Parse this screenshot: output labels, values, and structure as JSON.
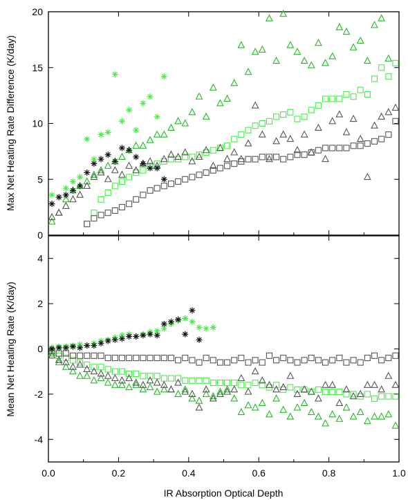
{
  "figure": {
    "xlabel": "IR Absorption Optical Depth",
    "top_ylabel": "Max Net Heating Rate Difference (K/day)",
    "bottom_ylabel": "Mean Net Heating Rate (K/day)"
  },
  "colors": {
    "green": "#22bb22",
    "light_green": "#44ee44",
    "gray": "#555555",
    "dark": "#111111"
  },
  "chart_data": [
    {
      "type": "scatter",
      "panel": "top",
      "xlabel": "IR Absorption Optical Depth",
      "ylabel": "Max Net Heating Rate Difference (K/day)",
      "xlim": [
        0,
        1
      ],
      "ylim": [
        0,
        20
      ],
      "xticks": [
        "0.0",
        "0.2",
        "0.4",
        "0.6",
        "0.8",
        "1.0"
      ],
      "yticks": [
        "0",
        "5",
        "10",
        "15",
        "20"
      ],
      "series": [
        {
          "marker": "triangle",
          "color": "#22bb22",
          "x": [
            0.01,
            0.03,
            0.05,
            0.07,
            0.09,
            0.11,
            0.13,
            0.15,
            0.17,
            0.19,
            0.21,
            0.23,
            0.25,
            0.27,
            0.29,
            0.31,
            0.33,
            0.35,
            0.37,
            0.39,
            0.41,
            0.43,
            0.45,
            0.47,
            0.49,
            0.51,
            0.53,
            0.55,
            0.57,
            0.59,
            0.61,
            0.63,
            0.65,
            0.67,
            0.69,
            0.71,
            0.73,
            0.75,
            0.77,
            0.79,
            0.81,
            0.83,
            0.85,
            0.87,
            0.89,
            0.91,
            0.93,
            0.95,
            0.97
          ],
          "y": [
            1.2,
            2.0,
            3.2,
            4.0,
            4.4,
            4.8,
            5.4,
            5.8,
            6.2,
            6.6,
            7.0,
            7.6,
            8.0,
            8.0,
            8.5,
            9.0,
            9.0,
            9.6,
            10.2,
            10.0,
            11.0,
            12.4,
            10.6,
            13.2,
            11.8,
            12.2,
            13.6,
            17.0,
            14.6,
            16.4,
            16.6,
            19.4,
            15.6,
            19.8,
            17.0,
            16.4,
            15.6,
            15.2,
            17.2,
            15.4,
            16.0,
            18.6,
            18.2,
            16.8,
            17.4,
            15.6,
            18.8,
            19.4,
            15.8
          ]
        },
        {
          "marker": "square",
          "color": "#44ee44",
          "x": [
            0.11,
            0.13,
            0.15,
            0.17,
            0.19,
            0.21,
            0.23,
            0.25,
            0.27,
            0.29,
            0.31,
            0.33,
            0.35,
            0.37,
            0.39,
            0.41,
            0.43,
            0.45,
            0.47,
            0.49,
            0.51,
            0.53,
            0.55,
            0.57,
            0.59,
            0.61,
            0.63,
            0.65,
            0.67,
            0.69,
            0.71,
            0.73,
            0.75,
            0.77,
            0.79,
            0.81,
            0.83,
            0.85,
            0.87,
            0.89,
            0.91,
            0.93,
            0.95,
            0.97,
            0.99
          ],
          "y": [
            1.0,
            2.0,
            3.2,
            3.8,
            4.4,
            4.8,
            5.2,
            5.6,
            5.8,
            6.2,
            6.4,
            6.6,
            6.8,
            6.8,
            7.0,
            7.0,
            7.2,
            7.4,
            7.6,
            7.8,
            8.0,
            8.6,
            9.0,
            9.4,
            9.8,
            10.0,
            10.2,
            10.6,
            10.8,
            11.0,
            10.4,
            10.6,
            11.2,
            11.6,
            12.2,
            12.2,
            12.2,
            12.6,
            12.4,
            13.0,
            12.6,
            14.0,
            15.0,
            14.2,
            15.4
          ]
        },
        {
          "marker": "triangle",
          "color": "#555555",
          "x": [
            0.01,
            0.03,
            0.05,
            0.07,
            0.09,
            0.11,
            0.13,
            0.15,
            0.17,
            0.19,
            0.21,
            0.23,
            0.25,
            0.27,
            0.29,
            0.31,
            0.33,
            0.35,
            0.37,
            0.39,
            0.41,
            0.43,
            0.45,
            0.47,
            0.49,
            0.51,
            0.53,
            0.55,
            0.57,
            0.59,
            0.61,
            0.63,
            0.65,
            0.67,
            0.69,
            0.71,
            0.73,
            0.75,
            0.77,
            0.79,
            0.81,
            0.83,
            0.85,
            0.87,
            0.89,
            0.91,
            0.93,
            0.95,
            0.97,
            0.99
          ],
          "y": [
            1.6,
            2.0,
            2.6,
            3.2,
            3.6,
            4.4,
            5.2,
            5.6,
            5.0,
            5.8,
            5.4,
            6.2,
            5.8,
            6.4,
            6.6,
            6.2,
            6.8,
            7.2,
            7.0,
            7.4,
            6.6,
            7.0,
            7.6,
            6.2,
            7.8,
            6.8,
            7.4,
            6.8,
            8.2,
            11.6,
            9.0,
            6.8,
            8.4,
            9.0,
            8.6,
            7.6,
            9.0,
            7.4,
            9.6,
            6.8,
            10.2,
            10.8,
            9.2,
            10.4,
            8.6,
            5.2,
            9.8,
            10.6,
            11.0,
            11.4
          ]
        },
        {
          "marker": "square",
          "color": "#555555",
          "x": [
            0.11,
            0.13,
            0.15,
            0.17,
            0.19,
            0.21,
            0.23,
            0.25,
            0.27,
            0.29,
            0.31,
            0.33,
            0.35,
            0.37,
            0.39,
            0.41,
            0.43,
            0.45,
            0.47,
            0.49,
            0.51,
            0.53,
            0.55,
            0.57,
            0.59,
            0.61,
            0.63,
            0.65,
            0.67,
            0.69,
            0.71,
            0.73,
            0.75,
            0.77,
            0.79,
            0.81,
            0.83,
            0.85,
            0.87,
            0.89,
            0.91,
            0.93,
            0.95,
            0.97,
            0.99
          ],
          "y": [
            1.0,
            1.5,
            1.8,
            2.0,
            2.2,
            2.5,
            2.8,
            3.2,
            3.6,
            4.0,
            4.2,
            4.4,
            4.6,
            4.8,
            5.0,
            5.2,
            5.4,
            5.6,
            5.8,
            6.0,
            6.2,
            6.4,
            6.6,
            6.8,
            6.8,
            7.0,
            7.0,
            7.0,
            6.8,
            7.0,
            7.2,
            7.2,
            7.4,
            7.6,
            7.8,
            7.8,
            7.8,
            7.8,
            8.0,
            8.0,
            8.2,
            8.4,
            8.6,
            9.0,
            10.2
          ]
        },
        {
          "marker": "asterisk",
          "color": "#44ee44",
          "x": [
            0.01,
            0.03,
            0.05,
            0.07,
            0.09,
            0.11,
            0.13,
            0.15,
            0.17,
            0.19,
            0.21,
            0.23,
            0.25,
            0.27,
            0.29,
            0.31,
            0.33
          ],
          "y": [
            3.6,
            3.4,
            4.2,
            4.8,
            5.2,
            8.6,
            6.8,
            9.0,
            9.2,
            14.4,
            10.2,
            11.2,
            9.4,
            11.8,
            12.4,
            10.6,
            14.2
          ]
        },
        {
          "marker": "asterisk",
          "color": "#111111",
          "x": [
            0.01,
            0.03,
            0.05,
            0.07,
            0.09,
            0.11,
            0.13,
            0.15,
            0.17,
            0.19,
            0.21,
            0.23,
            0.25,
            0.27,
            0.29,
            0.31,
            0.33
          ],
          "y": [
            2.8,
            3.4,
            3.6,
            4.0,
            4.4,
            5.6,
            6.4,
            6.8,
            7.2,
            6.6,
            7.8,
            7.6,
            7.0,
            6.4,
            6.0,
            6.0,
            5.0
          ]
        }
      ]
    },
    {
      "type": "scatter",
      "panel": "bottom",
      "xlabel": "IR Absorption Optical Depth",
      "ylabel": "Mean Net Heating Rate (K/day)",
      "xlim": [
        0,
        1
      ],
      "ylim": [
        -5,
        5
      ],
      "xticks": [
        "0.0",
        "0.2",
        "0.4",
        "0.6",
        "0.8",
        "1.0"
      ],
      "yticks": [
        "-4",
        "-2",
        "0",
        "2",
        "4"
      ],
      "series": [
        {
          "marker": "triangle",
          "color": "#22bb22",
          "x": [
            0.01,
            0.03,
            0.05,
            0.07,
            0.09,
            0.11,
            0.13,
            0.15,
            0.17,
            0.19,
            0.21,
            0.23,
            0.25,
            0.27,
            0.29,
            0.31,
            0.33,
            0.35,
            0.37,
            0.39,
            0.41,
            0.43,
            0.45,
            0.47,
            0.49,
            0.51,
            0.53,
            0.55,
            0.57,
            0.59,
            0.61,
            0.63,
            0.65,
            0.67,
            0.69,
            0.71,
            0.73,
            0.75,
            0.77,
            0.79,
            0.81,
            0.83,
            0.85,
            0.87,
            0.89,
            0.91,
            0.93,
            0.95,
            0.97,
            0.99
          ],
          "y": [
            -0.2,
            -0.6,
            -0.8,
            -1.0,
            -1.2,
            -1.2,
            -1.4,
            -1.3,
            -1.5,
            -1.6,
            -1.6,
            -1.7,
            -1.6,
            -1.8,
            -1.7,
            -1.9,
            -1.8,
            -1.8,
            -2.0,
            -1.8,
            -2.2,
            -2.3,
            -2.0,
            -2.1,
            -1.9,
            -1.8,
            -2.2,
            -2.8,
            -2.5,
            -2.6,
            -2.4,
            -2.9,
            -2.2,
            -2.7,
            -3.0,
            -2.6,
            -2.4,
            -2.8,
            -3.0,
            -3.3,
            -2.9,
            -3.1,
            -2.6,
            -3.0,
            -2.8,
            -3.2,
            -3.0,
            -3.0,
            -2.9,
            -3.4
          ]
        },
        {
          "marker": "square",
          "color": "#44ee44",
          "x": [
            0.01,
            0.03,
            0.05,
            0.07,
            0.09,
            0.11,
            0.13,
            0.15,
            0.17,
            0.19,
            0.21,
            0.23,
            0.25,
            0.27,
            0.29,
            0.31,
            0.33,
            0.35,
            0.37,
            0.39,
            0.41,
            0.43,
            0.45,
            0.47,
            0.49,
            0.51,
            0.53,
            0.55,
            0.57,
            0.59,
            0.61,
            0.63,
            0.65,
            0.67,
            0.69,
            0.71,
            0.73,
            0.75,
            0.77,
            0.79,
            0.81,
            0.83,
            0.85,
            0.87,
            0.89,
            0.91,
            0.93,
            0.95,
            0.97,
            0.99
          ],
          "y": [
            -0.2,
            -0.3,
            -0.4,
            -0.5,
            -0.6,
            -0.7,
            -0.8,
            -0.8,
            -0.9,
            -1.0,
            -1.0,
            -1.1,
            -1.1,
            -1.2,
            -1.2,
            -1.2,
            -1.3,
            -1.3,
            -1.3,
            -1.4,
            -1.4,
            -1.4,
            -1.4,
            -1.5,
            -1.5,
            -1.5,
            -1.5,
            -1.6,
            -1.6,
            -1.5,
            -1.6,
            -1.7,
            -1.6,
            -1.8,
            -1.7,
            -1.8,
            -1.8,
            -1.9,
            -1.8,
            -1.9,
            -1.9,
            -1.9,
            -2.0,
            -2.0,
            -2.1,
            -2.0,
            -2.2,
            -2.1,
            -2.1,
            -2.1
          ]
        },
        {
          "marker": "triangle",
          "color": "#555555",
          "x": [
            0.01,
            0.03,
            0.05,
            0.07,
            0.09,
            0.11,
            0.13,
            0.15,
            0.17,
            0.19,
            0.21,
            0.23,
            0.25,
            0.27,
            0.29,
            0.31,
            0.33,
            0.35,
            0.37,
            0.39,
            0.41,
            0.43,
            0.45,
            0.47,
            0.49,
            0.51,
            0.53,
            0.55,
            0.57,
            0.59,
            0.61,
            0.63,
            0.65,
            0.67,
            0.69,
            0.71,
            0.73,
            0.75,
            0.77,
            0.79,
            0.81,
            0.83,
            0.85,
            0.87,
            0.89,
            0.91,
            0.93,
            0.95,
            0.97,
            0.99
          ],
          "y": [
            -0.3,
            -0.5,
            -0.6,
            -0.8,
            -0.7,
            -0.9,
            -1.0,
            -1.1,
            -1.2,
            -1.3,
            -1.4,
            -1.3,
            -1.5,
            -1.6,
            -1.4,
            -1.5,
            -1.6,
            -1.8,
            -1.5,
            -1.9,
            -2.0,
            -2.6,
            -1.8,
            -2.2,
            -2.0,
            -1.9,
            -1.8,
            -1.3,
            -1.9,
            -1.0,
            -1.4,
            -1.6,
            -1.8,
            -1.7,
            -1.2,
            -2.0,
            -1.8,
            -1.9,
            -2.2,
            -1.6,
            -1.6,
            -2.4,
            -1.8,
            -2.1,
            -2.0,
            -1.6,
            -1.6,
            -1.8,
            -1.2,
            -1.6
          ]
        },
        {
          "marker": "square",
          "color": "#555555",
          "x": [
            0.01,
            0.03,
            0.05,
            0.07,
            0.09,
            0.11,
            0.13,
            0.15,
            0.17,
            0.19,
            0.21,
            0.23,
            0.25,
            0.27,
            0.29,
            0.31,
            0.33,
            0.35,
            0.37,
            0.39,
            0.41,
            0.43,
            0.45,
            0.47,
            0.49,
            0.51,
            0.53,
            0.55,
            0.57,
            0.59,
            0.61,
            0.63,
            0.65,
            0.67,
            0.69,
            0.71,
            0.73,
            0.75,
            0.77,
            0.79,
            0.81,
            0.83,
            0.85,
            0.87,
            0.89,
            0.91,
            0.93,
            0.95,
            0.97,
            0.99
          ],
          "y": [
            -0.1,
            -0.2,
            -0.2,
            -0.3,
            -0.3,
            -0.3,
            -0.3,
            -0.3,
            -0.4,
            -0.4,
            -0.4,
            -0.4,
            -0.4,
            -0.4,
            -0.4,
            -0.4,
            -0.4,
            -0.4,
            -0.5,
            -0.4,
            -0.5,
            -0.6,
            -0.4,
            -0.5,
            -0.6,
            -0.6,
            -0.5,
            -0.4,
            -0.6,
            -0.5,
            -0.6,
            -0.3,
            -0.5,
            -0.4,
            -0.5,
            -0.6,
            -0.5,
            -0.4,
            -0.5,
            -0.6,
            -0.5,
            -0.4,
            -0.6,
            -0.5,
            -0.6,
            -0.4,
            -0.3,
            -0.5,
            -0.4,
            -0.3
          ]
        },
        {
          "marker": "asterisk",
          "color": "#44ee44",
          "x": [
            0.01,
            0.03,
            0.05,
            0.07,
            0.09,
            0.11,
            0.13,
            0.15,
            0.17,
            0.19,
            0.21,
            0.23,
            0.25,
            0.27,
            0.29,
            0.31,
            0.33,
            0.35,
            0.37,
            0.39,
            0.41,
            0.43,
            0.45,
            0.47
          ],
          "y": [
            0.05,
            0.1,
            0.1,
            0.15,
            0.2,
            0.15,
            0.25,
            0.35,
            0.4,
            0.5,
            0.6,
            0.65,
            0.55,
            0.65,
            0.75,
            0.8,
            0.9,
            1.1,
            1.25,
            1.35,
            1.2,
            0.95,
            0.9,
            0.95
          ]
        },
        {
          "marker": "asterisk",
          "color": "#111111",
          "x": [
            0.01,
            0.03,
            0.05,
            0.07,
            0.09,
            0.11,
            0.13,
            0.15,
            0.17,
            0.19,
            0.21,
            0.23,
            0.25,
            0.27,
            0.29,
            0.31,
            0.33,
            0.35,
            0.37,
            0.39,
            0.41,
            0.43
          ],
          "y": [
            0.0,
            0.05,
            0.05,
            0.1,
            0.05,
            0.15,
            0.15,
            0.25,
            0.35,
            0.4,
            0.45,
            0.55,
            0.55,
            0.6,
            0.65,
            0.6,
            1.1,
            1.2,
            1.3,
            0.65,
            1.7,
            0.4
          ]
        }
      ]
    }
  ]
}
